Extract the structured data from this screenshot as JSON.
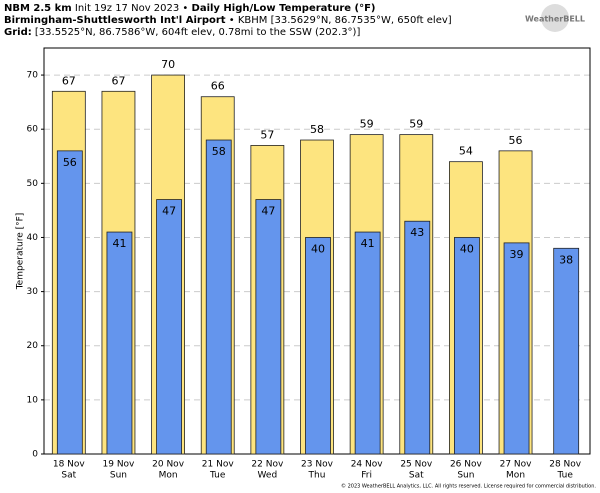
{
  "header": {
    "model": "NBM 2.5 km",
    "init": " Init 19z 17 Nov 2023 • ",
    "product": "Daily High/Low Temperature (°F)",
    "station": "Birmingham-Shuttlesworth Int'l Airport",
    "station_info": " • KBHM [33.5629°N, 86.7535°W, 650ft elev]",
    "grid_label": "Grid:",
    "grid_info": " [33.5525°N, 86.7586°W, 604ft elev, 0.78mi to the SSW (202.3°)]",
    "logo": "WeatherBELL"
  },
  "chart_data": {
    "type": "bar",
    "ylabel": "Temperature [°F]",
    "categories": [
      "18 Nov",
      "19 Nov",
      "20 Nov",
      "21 Nov",
      "22 Nov",
      "23 Nov",
      "24 Nov",
      "25 Nov",
      "26 Nov",
      "27 Nov",
      "28 Nov"
    ],
    "weekdays": [
      "Sat",
      "Sun",
      "Mon",
      "Tue",
      "Wed",
      "Thu",
      "Fri",
      "Sat",
      "Sun",
      "Mon",
      "Tue"
    ],
    "series": [
      {
        "name": "High",
        "color": "#fde47f",
        "values": [
          67,
          67,
          70,
          66,
          57,
          58,
          59,
          59,
          54,
          56,
          null
        ]
      },
      {
        "name": "Low",
        "color": "#6495ed",
        "values": [
          56,
          41,
          47,
          58,
          47,
          40,
          41,
          43,
          40,
          39,
          38
        ]
      }
    ],
    "ylim": [
      0,
      75
    ],
    "yticks": [
      0,
      10,
      20,
      30,
      40,
      50,
      60,
      70
    ],
    "grid": true
  },
  "footer": "© 2023 WeatherBELL Analytics, LLC. All rights reserved. License required for commercial distribution."
}
